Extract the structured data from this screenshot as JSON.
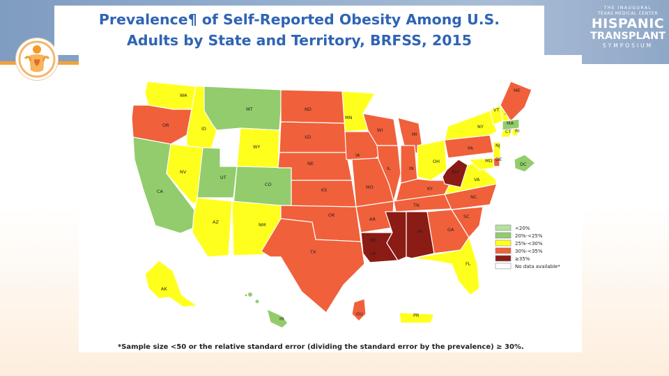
{
  "slide": {
    "title_line1": "Prevalence¶ of Self-Reported Obesity Among U.S.",
    "title_line2": "Adults by State and Territory, BRFSS, 2015",
    "footnote": "*Sample size <50 or the relative standard error (dividing the standard error by the prevalence) ≥ 30%."
  },
  "symposium_logo": {
    "line1": "THE INAUGURAL",
    "line2": "TEXAS MEDICAL CENTER",
    "line3": "HISPANIC",
    "line4": "TRANSPLANT",
    "line5": "SYMPOSIUM"
  },
  "colors": {
    "title": "#2f64b4",
    "lt20": "#b6e0a0",
    "c20_25": "#92cc6c",
    "c25_30": "#ffff1e",
    "c30_35": "#f0603a",
    "ge35": "#8b1b15",
    "no_data": "#ffffff"
  },
  "legend": [
    {
      "label": "<20%",
      "color_key": "lt20"
    },
    {
      "label": "20%-<25%",
      "color_key": "c20_25"
    },
    {
      "label": "25%-<30%",
      "color_key": "c25_30"
    },
    {
      "label": "30%-<35%",
      "color_key": "c30_35"
    },
    {
      "label": "≥35%",
      "color_key": "ge35"
    },
    {
      "label": "No data available*",
      "color_key": "no_data"
    }
  ],
  "states": [
    {
      "label": "WA",
      "category": "c25_30"
    },
    {
      "label": "OR",
      "category": "c30_35"
    },
    {
      "label": "CA",
      "category": "c20_25"
    },
    {
      "label": "ID",
      "category": "c25_30"
    },
    {
      "label": "NV",
      "category": "c25_30"
    },
    {
      "label": "MT",
      "category": "c20_25"
    },
    {
      "label": "WY",
      "category": "c25_30"
    },
    {
      "label": "UT",
      "category": "c20_25"
    },
    {
      "label": "CO",
      "category": "c20_25"
    },
    {
      "label": "AZ",
      "category": "c25_30"
    },
    {
      "label": "NM",
      "category": "c25_30"
    },
    {
      "label": "ND",
      "category": "c30_35"
    },
    {
      "label": "SD",
      "category": "c30_35"
    },
    {
      "label": "NE",
      "category": "c30_35"
    },
    {
      "label": "KS",
      "category": "c30_35"
    },
    {
      "label": "OK",
      "category": "c30_35"
    },
    {
      "label": "TX",
      "category": "c30_35"
    },
    {
      "label": "MN",
      "category": "c25_30"
    },
    {
      "label": "IA",
      "category": "c30_35"
    },
    {
      "label": "MO",
      "category": "c30_35"
    },
    {
      "label": "AR",
      "category": "c30_35"
    },
    {
      "label": "LA",
      "category": "ge35"
    },
    {
      "label": "WI",
      "category": "c30_35"
    },
    {
      "label": "IL",
      "category": "c30_35"
    },
    {
      "label": "MI",
      "category": "c30_35"
    },
    {
      "label": "IN",
      "category": "c30_35"
    },
    {
      "label": "OH",
      "category": "c25_30"
    },
    {
      "label": "KY",
      "category": "c30_35"
    },
    {
      "label": "TN",
      "category": "c30_35"
    },
    {
      "label": "MS",
      "category": "ge35"
    },
    {
      "label": "AL",
      "category": "ge35"
    },
    {
      "label": "GA",
      "category": "c30_35"
    },
    {
      "label": "FL",
      "category": "c25_30"
    },
    {
      "label": "SC",
      "category": "c30_35"
    },
    {
      "label": "NC",
      "category": "c30_35"
    },
    {
      "label": "VA",
      "category": "c25_30"
    },
    {
      "label": "WV",
      "category": "ge35"
    },
    {
      "label": "PA",
      "category": "c30_35"
    },
    {
      "label": "NY",
      "category": "c25_30"
    },
    {
      "label": "VT",
      "category": "c25_30"
    },
    {
      "label": "NH",
      "category": "c25_30"
    },
    {
      "label": "ME",
      "category": "c30_35"
    },
    {
      "label": "MA",
      "category": "c20_25"
    },
    {
      "label": "CT",
      "category": "c25_30"
    },
    {
      "label": "RI",
      "category": "c25_30"
    },
    {
      "label": "NJ",
      "category": "c25_30"
    },
    {
      "label": "DE",
      "category": "c30_35"
    },
    {
      "label": "MD",
      "category": "c25_30"
    },
    {
      "label": "DC",
      "category": "c20_25"
    },
    {
      "label": "AK",
      "category": "c25_30"
    },
    {
      "label": "HI",
      "category": "c20_25"
    },
    {
      "label": "GU",
      "category": "c30_35"
    },
    {
      "label": "PR",
      "category": "c25_30"
    }
  ]
}
